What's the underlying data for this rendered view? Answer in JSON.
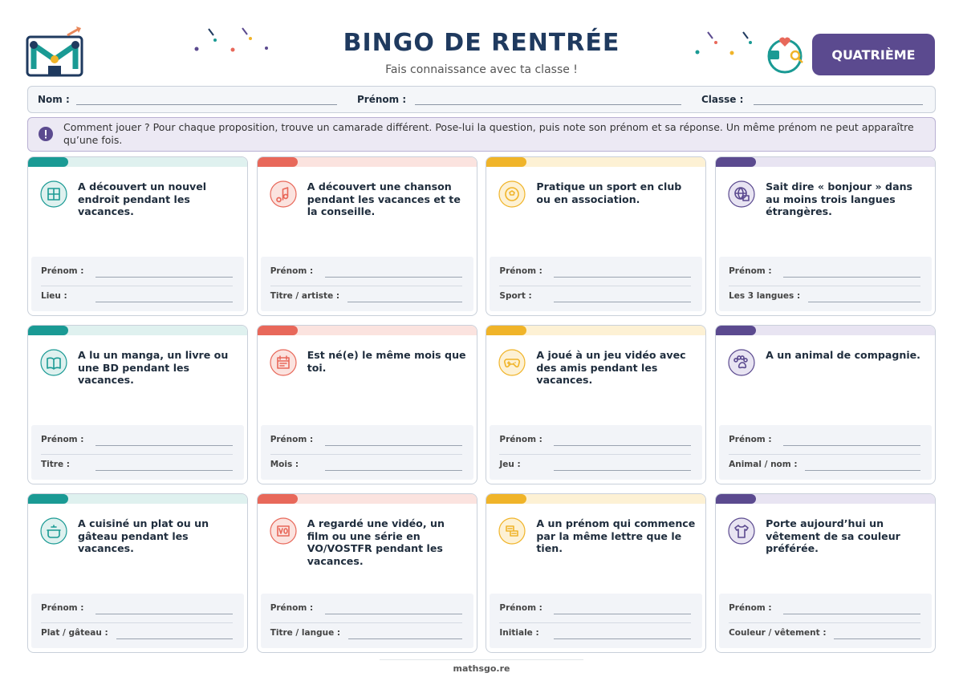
{
  "header": {
    "title": "BINGO DE RENTRÉE",
    "subtitle": "Fais connaissance avec ta classe !",
    "level": "QUATRIÈME"
  },
  "form": {
    "fields": [
      "Nom :",
      "Prénom :",
      "Classe :"
    ]
  },
  "instructions": "Comment jouer ? Pour chaque proposition, trouve un camarade différent. Pose-lui la question, puis note son prénom et sa réponse. Un même prénom ne peut apparaître qu’une fois.",
  "cards": [
    {
      "text": "A découvert un nouvel endroit pendant les vacances.",
      "fields": [
        "Prénom :",
        "Lieu :"
      ]
    },
    {
      "text": "A découvert une chanson pendant les vacances et te la conseille.",
      "fields": [
        "Prénom :",
        "Titre / artiste :"
      ]
    },
    {
      "text": "Pratique un sport en club ou en association.",
      "fields": [
        "Prénom :",
        "Sport :"
      ]
    },
    {
      "text": "Sait dire « bonjour » dans au moins trois langues étrangères.",
      "fields": [
        "Prénom :",
        "Les 3 langues :"
      ]
    },
    {
      "text": "A lu un manga, un livre ou une BD pendant les vacances.",
      "fields": [
        "Prénom :",
        "Titre :"
      ]
    },
    {
      "text": "Est né(e) le même mois que toi.",
      "fields": [
        "Prénom :",
        "Mois :"
      ]
    },
    {
      "text": "A joué à un jeu vidéo avec des amis pendant les vacances.",
      "fields": [
        "Prénom :",
        "Jeu :"
      ]
    },
    {
      "text": "A un animal de compagnie.",
      "fields": [
        "Prénom :",
        "Animal / nom :"
      ]
    },
    {
      "text": "A cuisiné un plat ou un gâteau pendant les vacances.",
      "fields": [
        "Prénom :",
        "Plat / gâteau :"
      ]
    },
    {
      "text": "A regardé une vidéo, un film ou une série en VO/VOSTFR pendant les vacances.",
      "fields": [
        "Prénom :",
        "Titre / langue :"
      ]
    },
    {
      "text": "A un prénom qui commence par la même lettre que le tien.",
      "fields": [
        "Prénom :",
        "Initiale :"
      ]
    },
    {
      "text": "Porte aujourd’hui un vêtement de sa couleur préférée.",
      "fields": [
        "Prénom :",
        "Couleur / vêtement :"
      ]
    }
  ],
  "footer": "mathsgo.re"
}
